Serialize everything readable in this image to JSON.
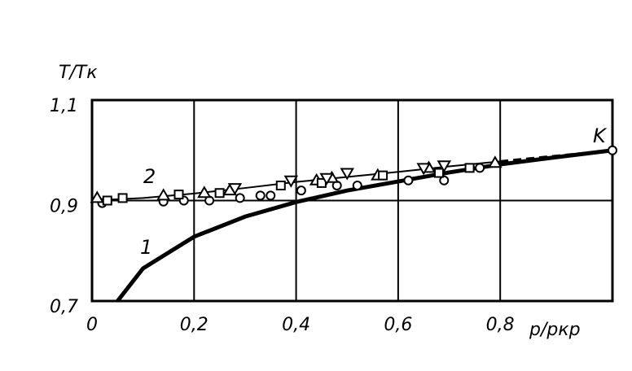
{
  "chart_data": {
    "type": "line",
    "y_label": "T/Tк",
    "x_label": "p/pкр",
    "xlim": [
      0,
      1.02
    ],
    "ylim": [
      0.7,
      1.1
    ],
    "xticks": [
      0,
      {
        "value": 0.2,
        "label": "0,2"
      },
      {
        "value": 0.4,
        "label": "0,4"
      },
      {
        "value": 0.6,
        "label": "0,6"
      },
      {
        "value": 0.8,
        "label": "0,8"
      }
    ],
    "yticks": [
      {
        "value": 0.7,
        "label": "0,7"
      },
      {
        "value": 0.9,
        "label": "0,9"
      },
      {
        "value": 1.1,
        "label": "1,1"
      }
    ],
    "grid": true,
    "annotations": [
      "1",
      "2",
      "K"
    ],
    "series": [
      {
        "color": "#000",
        "line": "solid",
        "width": 5,
        "marker": "none",
        "x": [
          0.05,
          0.1,
          0.2,
          0.3,
          0.4,
          0.5,
          0.6,
          0.7,
          0.8,
          0.9,
          1.02
        ],
        "values": [
          0.7,
          0.765,
          0.828,
          0.868,
          0.897,
          0.92,
          0.938,
          0.956,
          0.972,
          0.985,
          1.0
        ]
      },
      {
        "color": "#000",
        "line": "solid",
        "width": 2,
        "marker": "none",
        "x": [
          0,
          0.1,
          0.2,
          0.3,
          0.4,
          0.5,
          0.6,
          0.7,
          0.8
        ],
        "values": [
          0.9,
          0.905,
          0.914,
          0.925,
          0.937,
          0.947,
          0.957,
          0.968,
          0.978
        ]
      },
      {
        "color": "#000",
        "line": "dashed",
        "width": 3,
        "marker": "none",
        "x": [
          0.8,
          0.9,
          1.02
        ],
        "values": [
          0.978,
          0.988,
          1.0
        ]
      },
      {
        "color": "#000",
        "line": "none",
        "marker": "circle",
        "x": [
          0.02,
          0.14,
          0.18,
          0.23,
          0.29,
          0.33,
          0.35,
          0.41,
          0.48,
          0.52,
          0.62,
          0.69,
          0.76,
          1.02
        ],
        "values": [
          0.895,
          0.898,
          0.9,
          0.9,
          0.905,
          0.91,
          0.91,
          0.92,
          0.93,
          0.93,
          0.94,
          0.94,
          0.965,
          1.0
        ]
      },
      {
        "color": "#000",
        "line": "none",
        "marker": "triangle",
        "x": [
          0.01,
          0.14,
          0.22,
          0.27,
          0.44,
          0.47,
          0.56,
          0.66,
          0.79
        ],
        "values": [
          0.905,
          0.91,
          0.915,
          0.92,
          0.94,
          0.945,
          0.95,
          0.965,
          0.975
        ]
      },
      {
        "color": "#000",
        "line": "none",
        "marker": "square",
        "x": [
          0.03,
          0.06,
          0.17,
          0.25,
          0.37,
          0.45,
          0.57,
          0.68,
          0.74
        ],
        "values": [
          0.9,
          0.905,
          0.912,
          0.915,
          0.93,
          0.935,
          0.95,
          0.955,
          0.965
        ]
      },
      {
        "color": "#000",
        "line": "none",
        "marker": "triangle-down",
        "x": [
          0.28,
          0.39,
          0.46,
          0.5,
          0.65,
          0.69
        ],
        "values": [
          0.925,
          0.94,
          0.945,
          0.955,
          0.965,
          0.97
        ]
      }
    ]
  }
}
